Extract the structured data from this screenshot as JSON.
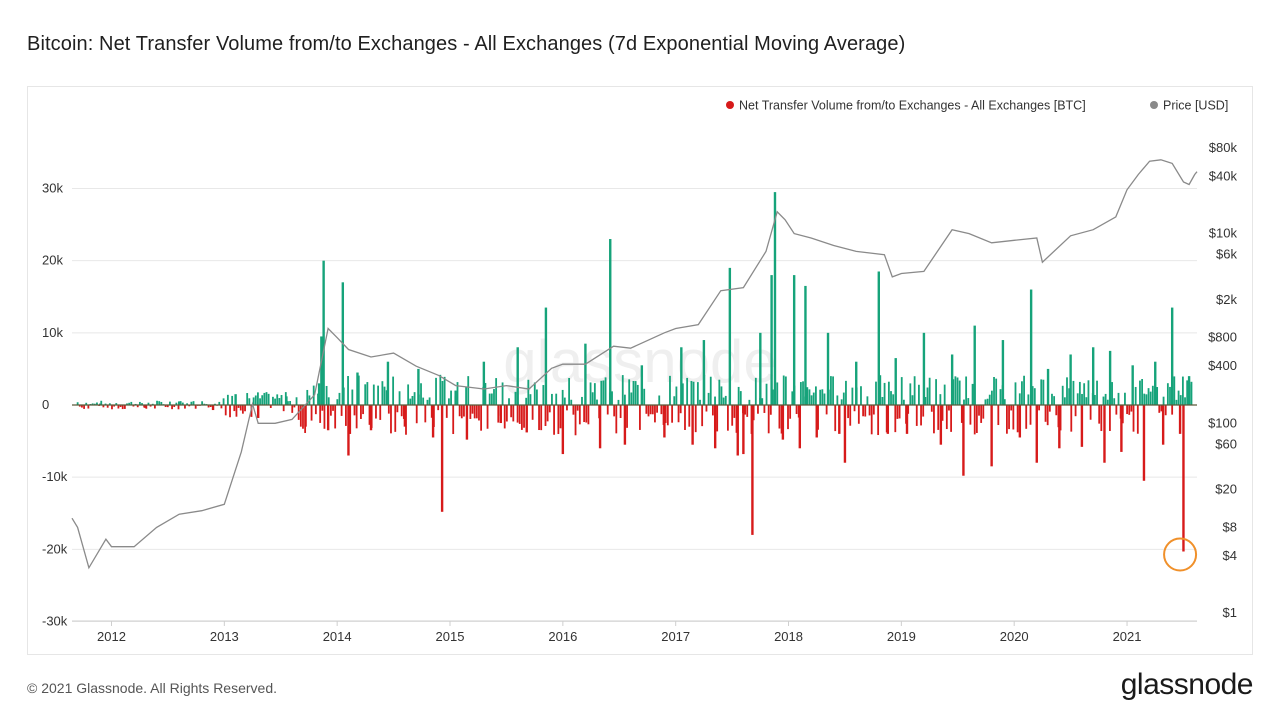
{
  "title": "Bitcoin: Net Transfer Volume from/to Exchanges - All Exchanges (7d Exponential Moving Average)",
  "footer": {
    "copyright": "© 2021 Glassnode. All Rights Reserved.",
    "logo": "glassnode"
  },
  "watermark": "glassnode",
  "colors": {
    "positive": "#16a37a",
    "negative": "#d71a1a",
    "price": "#8a8a8a",
    "highlight": "#f0902a",
    "grid": "#e8e8e8"
  },
  "chart_data": {
    "type": "bar",
    "title": "Bitcoin: Net Transfer Volume from/to Exchanges - All Exchanges (7d Exponential Moving Average)",
    "xlabel": "",
    "ylabel": "",
    "x_range": [
      2011.65,
      2021.62
    ],
    "x_ticks": [
      "2012",
      "2013",
      "2014",
      "2015",
      "2016",
      "2017",
      "2018",
      "2019",
      "2020",
      "2021"
    ],
    "ylim": [
      -30000,
      30000
    ],
    "y_ticks": [
      {
        "value": 30000,
        "label": "30k"
      },
      {
        "value": 20000,
        "label": "20k"
      },
      {
        "value": 10000,
        "label": "10k"
      },
      {
        "value": 0,
        "label": "0"
      },
      {
        "value": -10000,
        "label": "-10k"
      },
      {
        "value": -20000,
        "label": "-20k"
      },
      {
        "value": -30000,
        "label": "-30k"
      }
    ],
    "y2_ticks": [
      {
        "value": 80000,
        "label": "$80k"
      },
      {
        "value": 40000,
        "label": "$40k"
      },
      {
        "value": 10000,
        "label": "$10k"
      },
      {
        "value": 6000,
        "label": "$6k"
      },
      {
        "value": 2000,
        "label": "$2k"
      },
      {
        "value": 800,
        "label": "$800"
      },
      {
        "value": 400,
        "label": "$400"
      },
      {
        "value": 100,
        "label": "$100"
      },
      {
        "value": 60,
        "label": "$60"
      },
      {
        "value": 20,
        "label": "$20"
      },
      {
        "value": 8,
        "label": "$8"
      },
      {
        "value": 4,
        "label": "$4"
      },
      {
        "value": 1,
        "label": "$1"
      }
    ],
    "legend": [
      {
        "name": "Net Transfer Volume from/to Exchanges - All Exchanges [BTC]",
        "color": "#d71a1a"
      },
      {
        "name": "Price [USD]",
        "color": "#8a8a8a"
      }
    ],
    "legend_position": "top-right",
    "series": [
      {
        "name": "Net Transfer Volume from/to Exchanges - All Exchanges [BTC]",
        "kind": "bars",
        "x": [
          2011.9,
          2012.3,
          2012.6,
          2012.9,
          2013.1,
          2013.3,
          2013.55,
          2013.72,
          2013.84,
          2013.86,
          2013.88,
          2013.92,
          2014.05,
          2014.1,
          2014.18,
          2014.3,
          2014.45,
          2014.6,
          2014.72,
          2014.85,
          2014.93,
          2015.05,
          2015.15,
          2015.3,
          2015.45,
          2015.6,
          2015.68,
          2015.85,
          2016.0,
          2016.2,
          2016.33,
          2016.42,
          2016.55,
          2016.7,
          2016.9,
          2017.05,
          2017.15,
          2017.25,
          2017.35,
          2017.48,
          2017.55,
          2017.6,
          2017.68,
          2017.75,
          2017.85,
          2017.88,
          2017.95,
          2018.05,
          2018.1,
          2018.15,
          2018.25,
          2018.35,
          2018.45,
          2018.5,
          2018.6,
          2018.8,
          2018.88,
          2018.95,
          2019.05,
          2019.2,
          2019.35,
          2019.45,
          2019.55,
          2019.65,
          2019.8,
          2019.9,
          2020.05,
          2020.15,
          2020.2,
          2020.3,
          2020.4,
          2020.5,
          2020.6,
          2020.7,
          2020.8,
          2020.85,
          2020.95,
          2021.05,
          2021.15,
          2021.25,
          2021.32,
          2021.4,
          2021.47,
          2021.5,
          2021.55
        ],
        "values": [
          200,
          -400,
          500,
          -700,
          1500,
          -1800,
          1200,
          -3000,
          3000,
          9500,
          20000,
          -3500,
          17000,
          -7000,
          4500,
          -3500,
          6000,
          -3000,
          5000,
          -4500,
          -14800,
          2000,
          -4800,
          6000,
          -2500,
          8000,
          -3800,
          13500,
          -6800,
          8500,
          -6000,
          23000,
          -5500,
          5500,
          -4500,
          8000,
          -5500,
          9000,
          -6000,
          19000,
          -7000,
          -6800,
          -18000,
          10000,
          18000,
          29500,
          -4800,
          18000,
          -6000,
          16500,
          -4500,
          10000,
          -4000,
          -8000,
          6000,
          18500,
          -4000,
          6500,
          -4000,
          10000,
          -5500,
          7000,
          -9800,
          11000,
          -8500,
          9000,
          -4500,
          16000,
          -8000,
          5000,
          -6000,
          7000,
          -5800,
          8000,
          -8000,
          7500,
          -6500,
          5500,
          -10500,
          6000,
          -5500,
          13500,
          -4000,
          -20300,
          4000
        ]
      },
      {
        "name": "Price [USD]",
        "kind": "line",
        "x": [
          2011.65,
          2011.7,
          2011.8,
          2011.95,
          2012.0,
          2012.2,
          2012.4,
          2012.6,
          2012.8,
          2013.0,
          2013.15,
          2013.25,
          2013.3,
          2013.45,
          2013.6,
          2013.8,
          2013.92,
          2014.0,
          2014.1,
          2014.3,
          2014.5,
          2014.7,
          2014.9,
          2015.05,
          2015.3,
          2015.5,
          2015.7,
          2015.9,
          2016.0,
          2016.2,
          2016.45,
          2016.6,
          2016.9,
          2017.0,
          2017.2,
          2017.4,
          2017.6,
          2017.8,
          2017.9,
          2017.97,
          2018.05,
          2018.2,
          2018.4,
          2018.6,
          2018.85,
          2018.92,
          2019.0,
          2019.2,
          2019.45,
          2019.6,
          2019.8,
          2020.0,
          2020.2,
          2020.25,
          2020.5,
          2020.7,
          2020.9,
          2021.0,
          2021.1,
          2021.2,
          2021.3,
          2021.4,
          2021.5,
          2021.55,
          2021.6,
          2021.62
        ],
        "values": [
          10,
          8,
          3,
          6,
          5,
          5,
          8,
          11,
          12,
          14,
          50,
          160,
          100,
          100,
          110,
          200,
          1000,
          800,
          600,
          500,
          550,
          400,
          320,
          250,
          230,
          250,
          230,
          380,
          420,
          420,
          650,
          620,
          900,
          1000,
          1100,
          2500,
          2700,
          6500,
          17000,
          14000,
          10000,
          9000,
          7500,
          6500,
          6000,
          3500,
          3800,
          4000,
          11000,
          10000,
          8000,
          8500,
          9000,
          5000,
          9500,
          11000,
          15000,
          29000,
          42000,
          58000,
          60000,
          55000,
          35000,
          33000,
          42000,
          45000
        ]
      }
    ],
    "annotations": [
      {
        "type": "circle",
        "x": 2021.47,
        "value": -20300,
        "color": "#f0902a"
      }
    ]
  }
}
